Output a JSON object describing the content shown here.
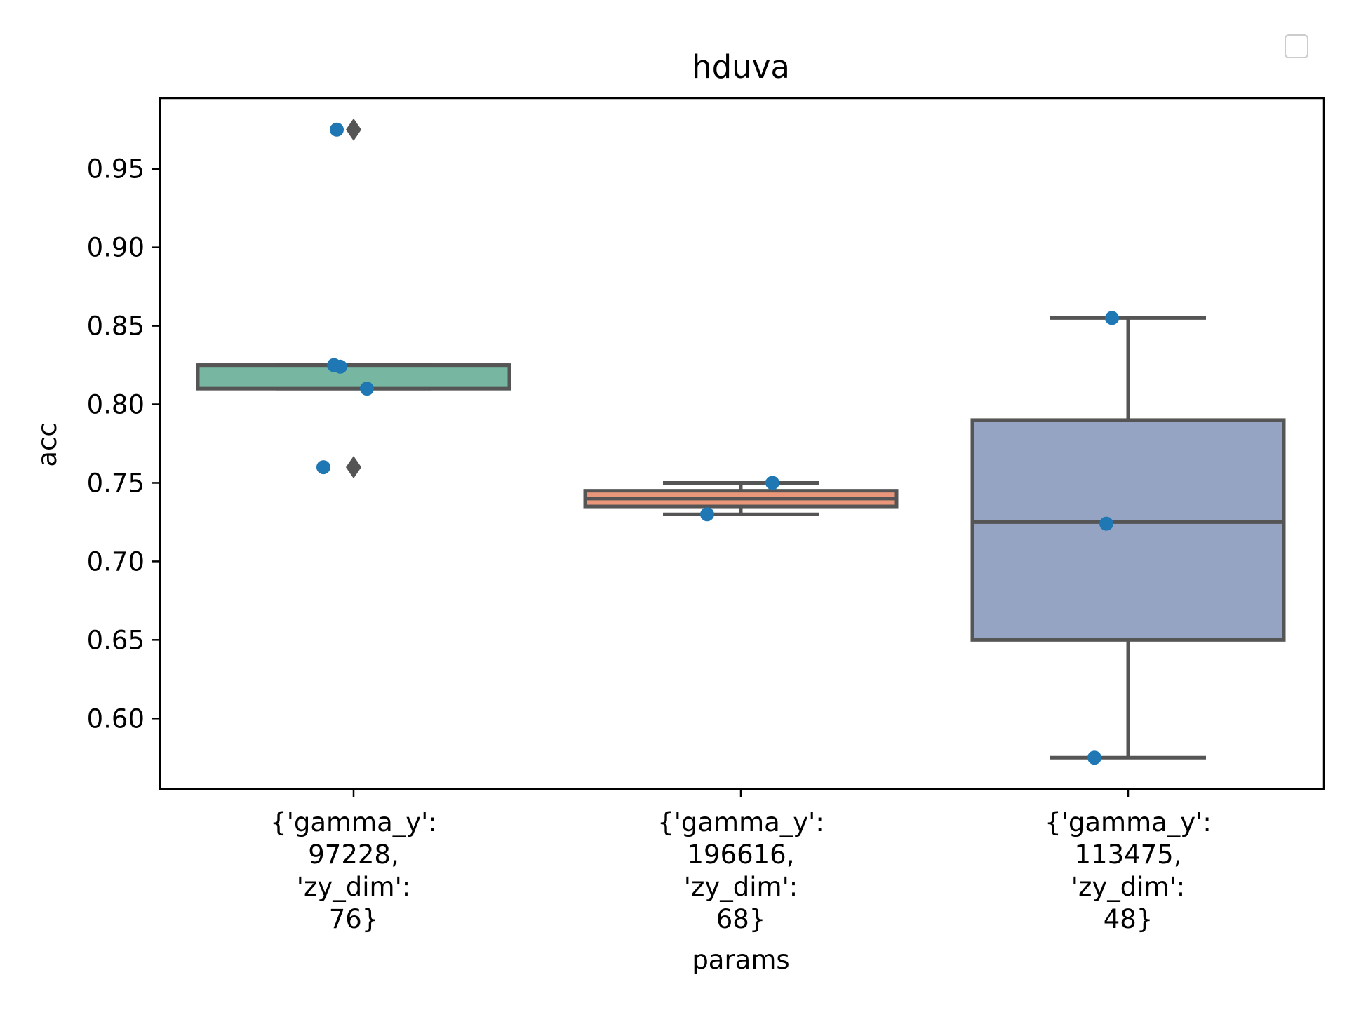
{
  "chart_data": {
    "type": "box",
    "title": "hduva",
    "xlabel": "params",
    "ylabel": "acc",
    "ylim": [
      0.555,
      0.995
    ],
    "yticks": [
      0.6,
      0.65,
      0.7,
      0.75,
      0.8,
      0.85,
      0.9,
      0.95
    ],
    "ytick_labels": [
      "0.60",
      "0.65",
      "0.70",
      "0.75",
      "0.80",
      "0.85",
      "0.90",
      "0.95"
    ],
    "legend": {
      "placement": "top-right",
      "entries": []
    },
    "grid": false,
    "categories": [
      {
        "label_lines": [
          "{'gamma_y':",
          "97228,",
          "'zy_dim':",
          "76}"
        ],
        "q1": 0.81,
        "median": 0.825,
        "q3": 0.825,
        "whisker_low": 0.81,
        "whisker_high": 0.825,
        "outliers": [
          0.975,
          0.76
        ],
        "points": [
          0.975,
          0.825,
          0.824,
          0.81,
          0.76
        ],
        "color": "#77b7a1"
      },
      {
        "label_lines": [
          "{'gamma_y':",
          "196616,",
          "'zy_dim':",
          "68}"
        ],
        "q1": 0.735,
        "median": 0.74,
        "q3": 0.745,
        "whisker_low": 0.73,
        "whisker_high": 0.75,
        "outliers": [],
        "points": [
          0.75,
          0.73
        ],
        "color": "#e9967a"
      },
      {
        "label_lines": [
          "{'gamma_y':",
          "113475,",
          "'zy_dim':",
          "48}"
        ],
        "q1": 0.65,
        "median": 0.725,
        "q3": 0.79,
        "whisker_low": 0.575,
        "whisker_high": 0.855,
        "outliers": [],
        "points": [
          0.855,
          0.724,
          0.575
        ],
        "color": "#95a4c3"
      }
    ],
    "colors": {
      "box_edge": "#555555",
      "point": "#1f77b4",
      "outlier": "#555555",
      "axis": "#000000"
    }
  }
}
